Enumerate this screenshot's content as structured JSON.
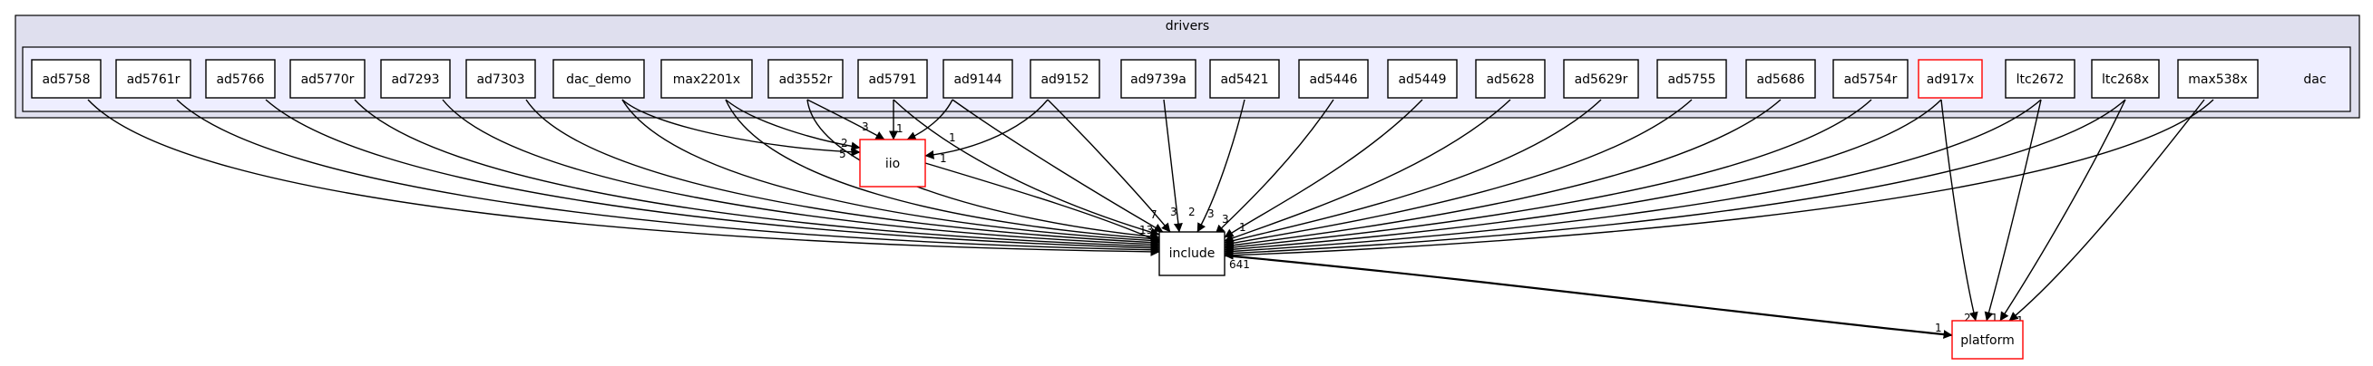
{
  "clusters": {
    "outer": "drivers",
    "inner": "dac"
  },
  "nodes": {
    "ad5758": "ad5758",
    "ad5761r": "ad5761r",
    "ad5766": "ad5766",
    "ad5770r": "ad5770r",
    "ad7293": "ad7293",
    "ad7303": "ad7303",
    "dac_demo": "dac_demo",
    "max2201x": "max2201x",
    "ad3552r": "ad3552r",
    "ad5791": "ad5791",
    "ad9144": "ad9144",
    "ad9152": "ad9152",
    "ad9739a": "ad9739a",
    "ad5421": "ad5421",
    "ad5446": "ad5446",
    "ad5449": "ad5449",
    "ad5628": "ad5628",
    "ad5629r": "ad5629r",
    "ad5755": "ad5755",
    "ad5686": "ad5686",
    "ad5754r": "ad5754r",
    "ad917x": "ad917x",
    "ltc2672": "ltc2672",
    "ltc268x": "ltc268x",
    "max538x": "max538x",
    "iio": "iio",
    "include": "include",
    "platform": "platform"
  },
  "edge_labels": {
    "dac_demo_iio": "5",
    "max2201x_iio": "2",
    "ad3552r_iio": "3",
    "ad5791_iio": "1",
    "ad9144_iio": "1",
    "ad9152_iio": "1",
    "left_include": "13",
    "ad9144_include": "7",
    "ad9152_include": "3",
    "ad9739a_include": "2",
    "ad5421_include": "3",
    "ad5446_include": "3",
    "ad5449_include": "1",
    "include_platform_tail": "641",
    "include_platform_head": "1",
    "ad917x_platform": "2",
    "ltc2672_platform": "1",
    "ltc268x_platform": "1"
  }
}
